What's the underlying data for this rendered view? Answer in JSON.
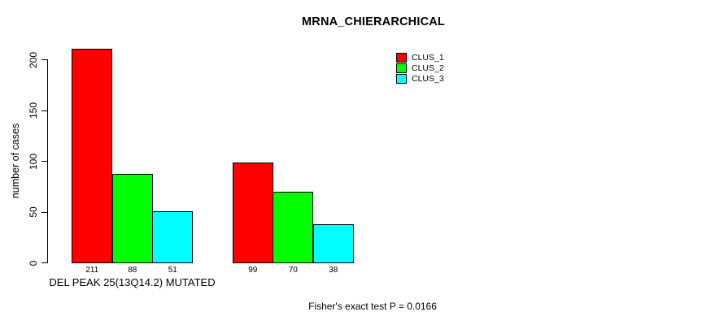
{
  "title": "MRNA_CHIERARCHICAL",
  "footnote": "Fisher's exact test P = 0.0166",
  "legend": [
    {
      "label": "CLUS_1",
      "color": "#FF0000"
    },
    {
      "label": "CLUS_2",
      "color": "#00FF00"
    },
    {
      "label": "CLUS_3",
      "color": "#00FFFF"
    }
  ],
  "chart_data": {
    "type": "bar",
    "title": "MRNA_CHIERARCHICAL",
    "xlabel": "",
    "ylabel": "number of cases",
    "ylim": [
      0,
      200
    ],
    "yticks": [
      0,
      50,
      100,
      150,
      200
    ],
    "grid": false,
    "legend_position": "top-right-inside",
    "bar_border_color": "#000000",
    "series": [
      {
        "name": "CLUS_1",
        "color": "#FF0000"
      },
      {
        "name": "CLUS_2",
        "color": "#00FF00"
      },
      {
        "name": "CLUS_3",
        "color": "#00FFFF"
      }
    ],
    "groups": [
      {
        "label": "DEL PEAK 25(13Q14.2) MUTATED",
        "values": [
          211,
          88,
          51
        ]
      },
      {
        "label": "",
        "values": [
          99,
          70,
          38
        ]
      }
    ],
    "value_labels": [
      211,
      88,
      51,
      99,
      70,
      38
    ],
    "annotation": "Fisher's exact test P = 0.0166"
  }
}
